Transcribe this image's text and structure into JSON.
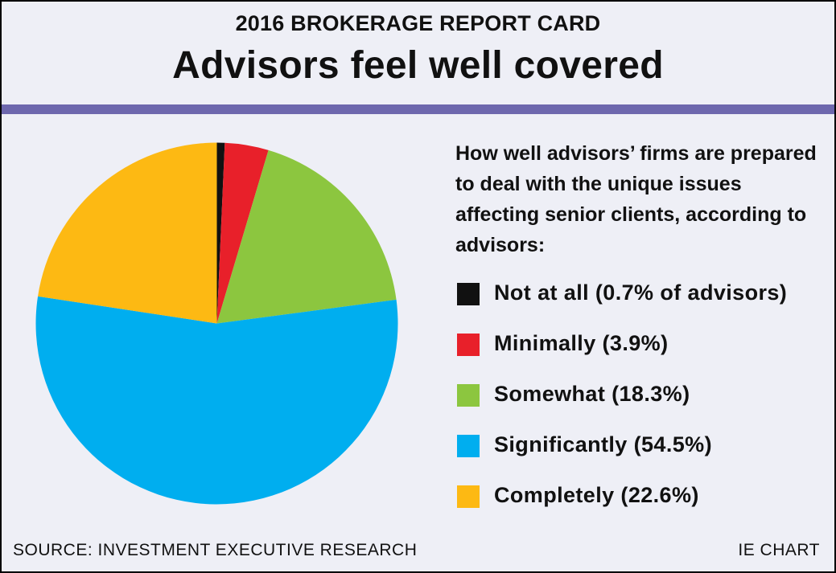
{
  "header": {
    "kicker": "2016 BROKERAGE REPORT CARD",
    "title": "Advisors feel well covered"
  },
  "colors": {
    "background": "#eeeff6",
    "rule": "#6d67ad"
  },
  "chart_data": {
    "type": "pie",
    "title": "How well advisors’ firms are prepared to deal with the unique issues affecting senior clients, according to advisors:",
    "slices": [
      {
        "label": "Not at all (0.7% of advisors)",
        "value": 0.7,
        "color": "#111111"
      },
      {
        "label": "Minimally (3.9%)",
        "value": 3.9,
        "color": "#e8202a"
      },
      {
        "label": "Somewhat (18.3%)",
        "value": 18.3,
        "color": "#8cc63f"
      },
      {
        "label": "Significantly (54.5%)",
        "value": 54.5,
        "color": "#00aeef"
      },
      {
        "label": "Completely (22.6%)",
        "value": 22.6,
        "color": "#fdb913"
      }
    ],
    "start": "12 o'clock",
    "direction": "clockwise",
    "legend": "right"
  },
  "footer": {
    "source": "SOURCE: INVESTMENT EXECUTIVE RESEARCH",
    "credit": "IE CHART"
  }
}
